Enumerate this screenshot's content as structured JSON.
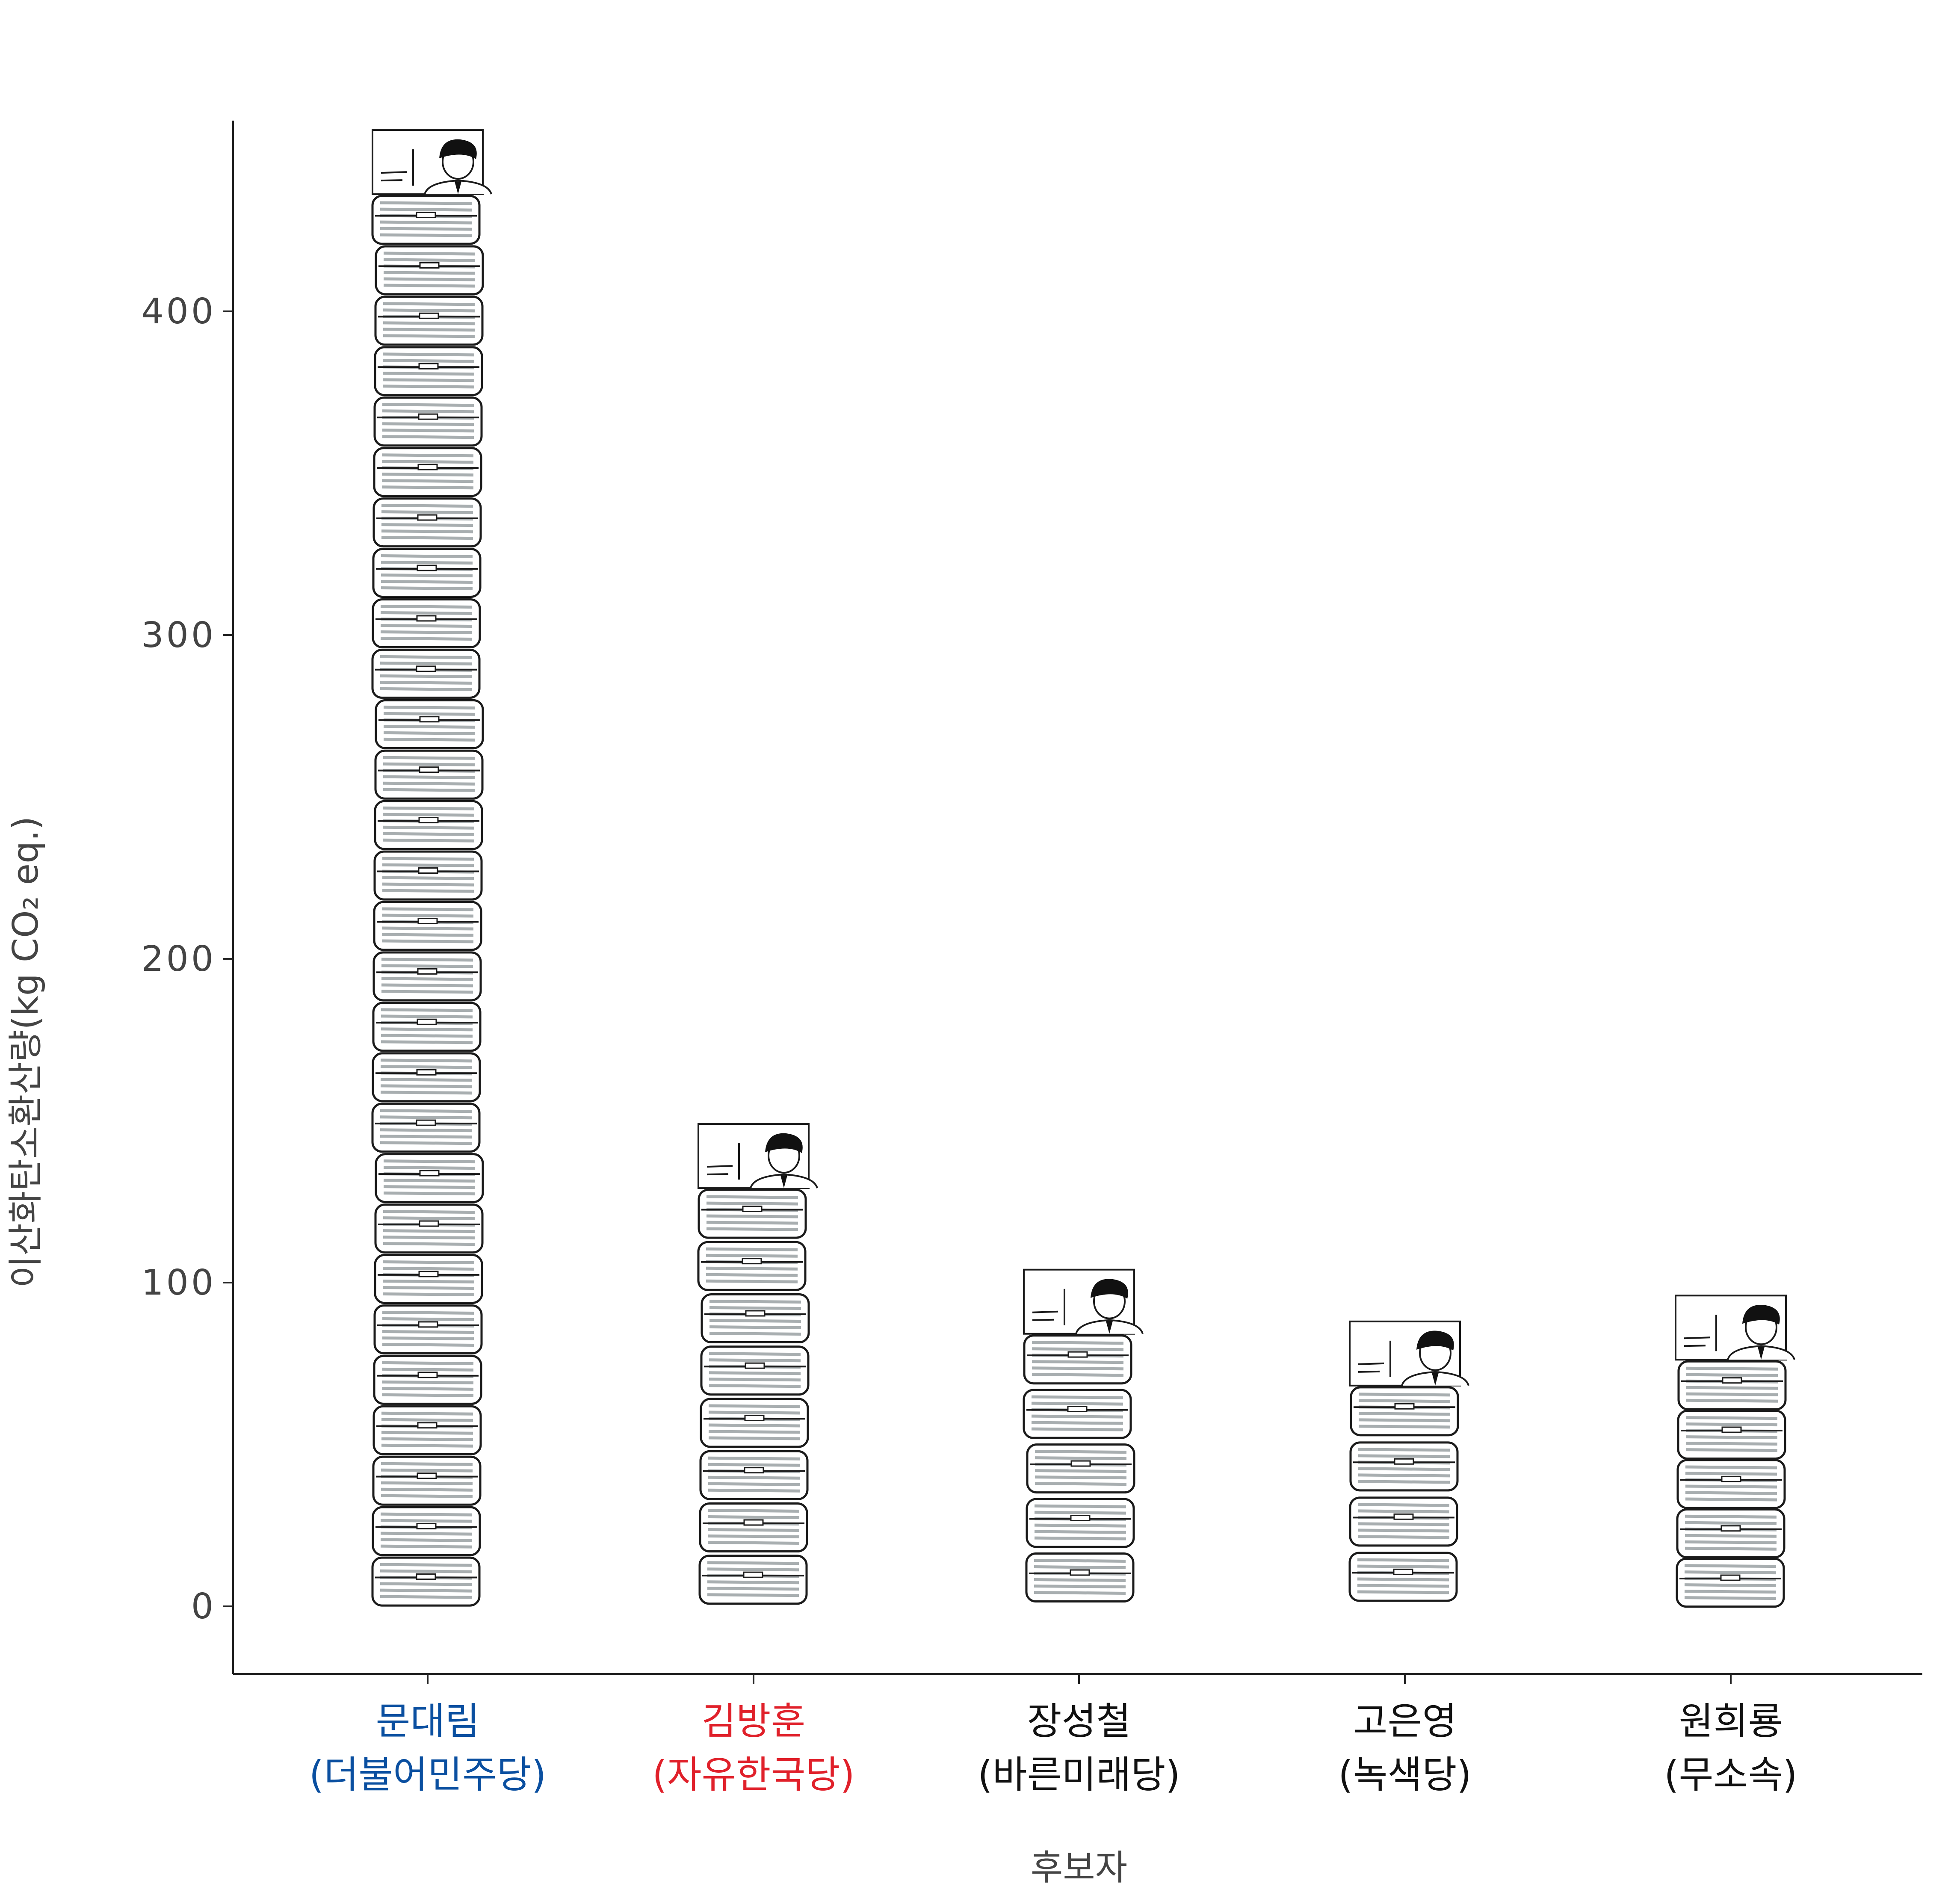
{
  "chart_data": {
    "type": "bar",
    "title": "",
    "xlabel": "후보자",
    "ylabel": "이산화탄소환산량(kg CO₂ eq.)",
    "ylim": [
      -20,
      460
    ],
    "yticks": [
      0,
      100,
      200,
      300,
      400
    ],
    "yticks_labels": [
      "0",
      "100",
      "200",
      "300",
      "400"
    ],
    "categories": [
      {
        "name": "문대림",
        "party": "(더불어민주당)",
        "color": "#0a4fa0"
      },
      {
        "name": "김방훈",
        "party": "(자유한국당)",
        "color": "#e0202a"
      },
      {
        "name": "장성철",
        "party": "(바른미래당)",
        "color": "#111111"
      },
      {
        "name": "고은영",
        "party": "(녹색당)",
        "color": "#111111"
      },
      {
        "name": "원희룡",
        "party": "(무소속)",
        "color": "#111111"
      }
    ],
    "values": [
      456,
      149,
      104,
      88,
      96
    ],
    "grid": false,
    "mark_style": "stacked paper boxes with poster on top"
  }
}
